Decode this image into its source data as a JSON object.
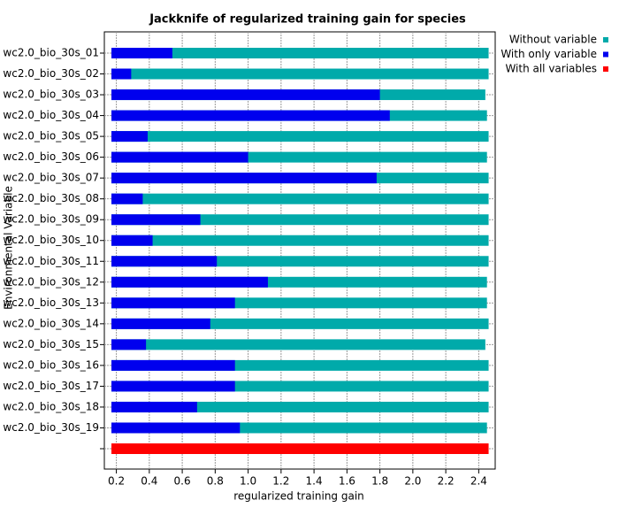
{
  "chart_data": {
    "type": "bar",
    "orientation": "horizontal",
    "overlap": true,
    "title": "Jackknife of regularized training gain for species",
    "x_label": "regularized training gain",
    "y_label": "Environmental Variable",
    "categories": [
      "wc2.0_bio_30s_01",
      "wc2.0_bio_30s_02",
      "wc2.0_bio_30s_03",
      "wc2.0_bio_30s_04",
      "wc2.0_bio_30s_05",
      "wc2.0_bio_30s_06",
      "wc2.0_bio_30s_07",
      "wc2.0_bio_30s_08",
      "wc2.0_bio_30s_09",
      "wc2.0_bio_30s_10",
      "wc2.0_bio_30s_11",
      "wc2.0_bio_30s_12",
      "wc2.0_bio_30s_13",
      "wc2.0_bio_30s_14",
      "wc2.0_bio_30s_15",
      "wc2.0_bio_30s_16",
      "wc2.0_bio_30s_17",
      "wc2.0_bio_30s_18",
      "wc2.0_bio_30s_19",
      null
    ],
    "series": [
      {
        "name": "Without variable",
        "color": "#00aaaa",
        "values": [
          2.46,
          2.46,
          2.44,
          2.45,
          2.46,
          2.45,
          2.46,
          2.46,
          2.46,
          2.46,
          2.46,
          2.45,
          2.45,
          2.46,
          2.44,
          2.46,
          2.46,
          2.46,
          2.45,
          null
        ]
      },
      {
        "name": "With only variable",
        "color": "#0000ee",
        "values": [
          0.54,
          0.29,
          1.8,
          1.86,
          0.39,
          1.0,
          1.78,
          0.36,
          0.71,
          0.42,
          0.81,
          1.12,
          0.92,
          0.77,
          0.38,
          0.92,
          0.92,
          0.69,
          0.95,
          null
        ]
      },
      {
        "name": "With all variables",
        "color": "#ff0000",
        "values": [
          null,
          null,
          null,
          null,
          null,
          null,
          null,
          null,
          null,
          null,
          null,
          null,
          null,
          null,
          null,
          null,
          null,
          null,
          null,
          2.46
        ]
      }
    ],
    "xlim": [
      0.17,
      2.5
    ],
    "xticks": [
      0.2,
      0.4,
      0.6,
      0.8,
      {
        "value": 1,
        "label": "1.0"
      },
      1.2,
      1.4,
      1.6,
      1.8,
      {
        "value": 2,
        "label": "2.0"
      },
      2.2,
      2.4
    ],
    "grid": true,
    "legend": "top-right"
  }
}
